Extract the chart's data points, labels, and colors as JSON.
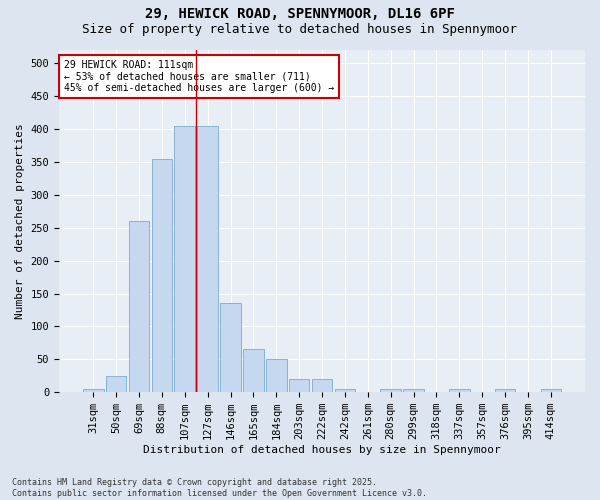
{
  "title1": "29, HEWICK ROAD, SPENNYMOOR, DL16 6PF",
  "title2": "Size of property relative to detached houses in Spennymoor",
  "xlabel": "Distribution of detached houses by size in Spennymoor",
  "ylabel": "Number of detached properties",
  "categories": [
    "31sqm",
    "50sqm",
    "69sqm",
    "88sqm",
    "107sqm",
    "127sqm",
    "146sqm",
    "165sqm",
    "184sqm",
    "203sqm",
    "222sqm",
    "242sqm",
    "261sqm",
    "280sqm",
    "299sqm",
    "318sqm",
    "337sqm",
    "357sqm",
    "376sqm",
    "395sqm",
    "414sqm"
  ],
  "values": [
    5,
    25,
    260,
    355,
    405,
    405,
    135,
    65,
    50,
    20,
    20,
    5,
    0,
    5,
    5,
    0,
    5,
    0,
    5,
    0,
    5
  ],
  "bar_color": "#c5d8ef",
  "bar_edge_color": "#7aaace",
  "vline_x": 5,
  "vline_color": "#cc0000",
  "annotation_text": "29 HEWICK ROAD: 111sqm\n← 53% of detached houses are smaller (711)\n45% of semi-detached houses are larger (600) →",
  "annotation_box_color": "#ffffff",
  "annotation_box_edge": "#cc0000",
  "ylim": [
    0,
    520
  ],
  "yticks": [
    0,
    50,
    100,
    150,
    200,
    250,
    300,
    350,
    400,
    450,
    500
  ],
  "bg_color": "#dde6f0",
  "plot_bg_color": "#e8eef5",
  "footer1": "Contains HM Land Registry data © Crown copyright and database right 2025.",
  "footer2": "Contains public sector information licensed under the Open Government Licence v3.0.",
  "title_fontsize": 10,
  "subtitle_fontsize": 9,
  "axis_label_fontsize": 8,
  "tick_fontsize": 7.5,
  "annotation_fontsize": 7,
  "footer_fontsize": 6
}
